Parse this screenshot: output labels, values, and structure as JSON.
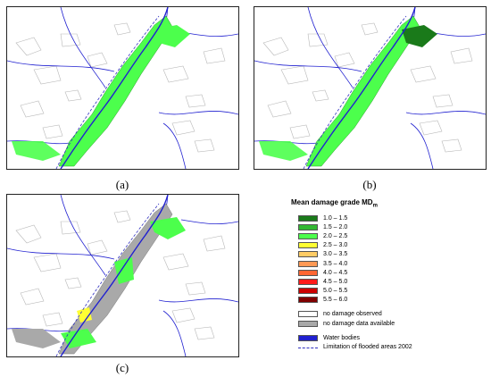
{
  "panels": [
    {
      "id": "a",
      "label": "(a)"
    },
    {
      "id": "b",
      "label": "(b)"
    },
    {
      "id": "c",
      "label": "(c)"
    }
  ],
  "legend": {
    "title": "Mean damage grade MD",
    "title_sub": "m",
    "grades": [
      {
        "label": "1.0 – 1.5",
        "color": "#1a7a1a"
      },
      {
        "label": "1.5 – 2.0",
        "color": "#33b833"
      },
      {
        "label": "2.0 – 2.5",
        "color": "#4cff4c"
      },
      {
        "label": "2.5 – 3.0",
        "color": "#ffff33"
      },
      {
        "label": "3.0 – 3.5",
        "color": "#ffcc66"
      },
      {
        "label": "3.5 – 4.0",
        "color": "#ff9955"
      },
      {
        "label": "4.0 – 4.5",
        "color": "#ff6633"
      },
      {
        "label": "4.5 – 5.0",
        "color": "#ff1a1a"
      },
      {
        "label": "5.0 – 5.5",
        "color": "#cc0000"
      },
      {
        "label": "5.5 – 6.0",
        "color": "#800000"
      }
    ],
    "other": [
      {
        "label": "no damage observed",
        "color": "#ffffff"
      },
      {
        "label": "no damage data available",
        "color": "#a9a9a9"
      }
    ],
    "water_label": "Water bodies",
    "water_color": "#2020d0",
    "flood_label": "Limitation of flooded areas 2002"
  }
}
